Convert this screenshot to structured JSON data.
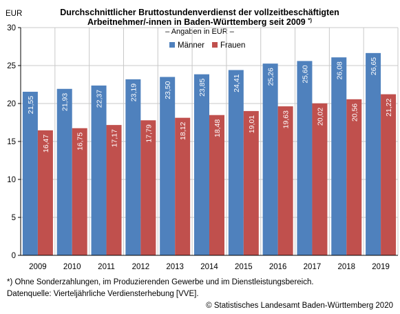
{
  "chart_data": {
    "type": "bar",
    "title_line1": "Durchschnittlicher Bruttostundenverdienst der vollzeitbeschäftigten",
    "title_line2": "Arbeitnehmer/-innen in Baden-Württemberg seit 2009",
    "title_footnote_mark": "*)",
    "subtitle": "– Angaben in EUR –",
    "ylabel": "EUR",
    "ylim": [
      0,
      30
    ],
    "yticks": [
      0,
      5,
      10,
      15,
      20,
      25,
      30
    ],
    "grid": true,
    "legend_position": "top-right",
    "categories": [
      "2009",
      "2010",
      "2011",
      "2012",
      "2013",
      "2014",
      "2015",
      "2016",
      "2017",
      "2018",
      "2019"
    ],
    "series": [
      {
        "name": "Männer",
        "color": "#4f81bd",
        "values": [
          21.55,
          21.93,
          22.37,
          23.19,
          23.5,
          23.85,
          24.41,
          25.26,
          25.6,
          26.08,
          26.65
        ],
        "labels": [
          "21,55",
          "21,93",
          "22,37",
          "23,19",
          "23,50",
          "23,85",
          "24,41",
          "25,26",
          "25,60",
          "26,08",
          "26,65"
        ]
      },
      {
        "name": "Frauen",
        "color": "#c0504d",
        "values": [
          16.47,
          16.75,
          17.17,
          17.79,
          18.12,
          18.48,
          19.01,
          19.63,
          20.02,
          20.56,
          21.22
        ],
        "labels": [
          "16,47",
          "16,75",
          "17,17",
          "17,79",
          "18,12",
          "18,48",
          "19,01",
          "19,63",
          "20,02",
          "20,56",
          "21,22"
        ]
      }
    ]
  },
  "footnote": "*) Ohne Sonderzahlungen, im Produzierenden Gewerbe und im Dienstleistungsbereich.",
  "source": "Datenquelle: Vierteljährliche Verdiensterhebung [VVE].",
  "copyright": "© Statistisches Landesamt Baden-Württemberg 2020"
}
